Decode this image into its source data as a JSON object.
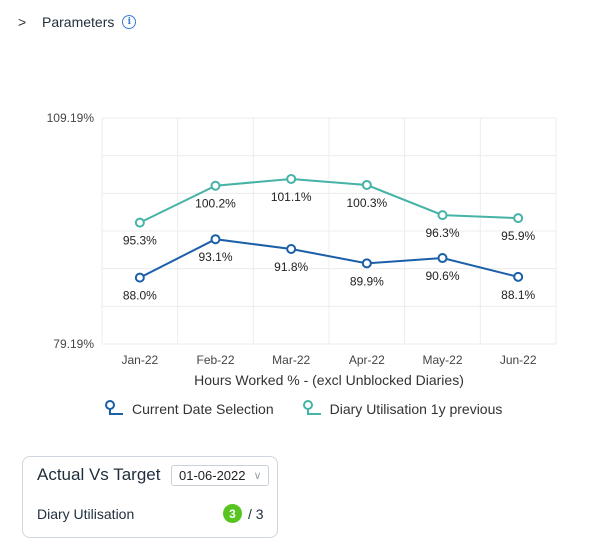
{
  "header": {
    "title": "Parameters"
  },
  "chart_data": {
    "type": "line",
    "categories": [
      "Jan-22",
      "Feb-22",
      "Mar-22",
      "Apr-22",
      "May-22",
      "Jun-22"
    ],
    "series": [
      {
        "name": "Current Date Selection",
        "color": "#1a5fa8",
        "values": [
          88.0,
          93.1,
          91.8,
          89.9,
          90.6,
          88.1
        ],
        "labels": [
          "88.0%",
          "93.1%",
          "91.8%",
          "89.9%",
          "90.6%",
          "88.1%"
        ]
      },
      {
        "name": "Diary Utilisation 1y previous",
        "color": "#45b3a6",
        "values": [
          95.3,
          100.2,
          101.1,
          100.3,
          96.3,
          95.9
        ],
        "labels": [
          "95.3%",
          "100.2%",
          "101.1%",
          "100.3%",
          "96.3%",
          "95.9%"
        ]
      }
    ],
    "ylim": [
      79.19,
      109.19
    ],
    "yticks": [
      "79.19%",
      "109.19%"
    ],
    "xlabel": "Hours Worked % - (excl Unblocked Diaries)",
    "ylabel": "",
    "grid": true,
    "legend": "bottom"
  },
  "card": {
    "title": "Actual Vs Target",
    "date_value": "01-06-2022",
    "metric_label": "Diary Utilisation",
    "actual": "3",
    "target": "/ 3"
  }
}
